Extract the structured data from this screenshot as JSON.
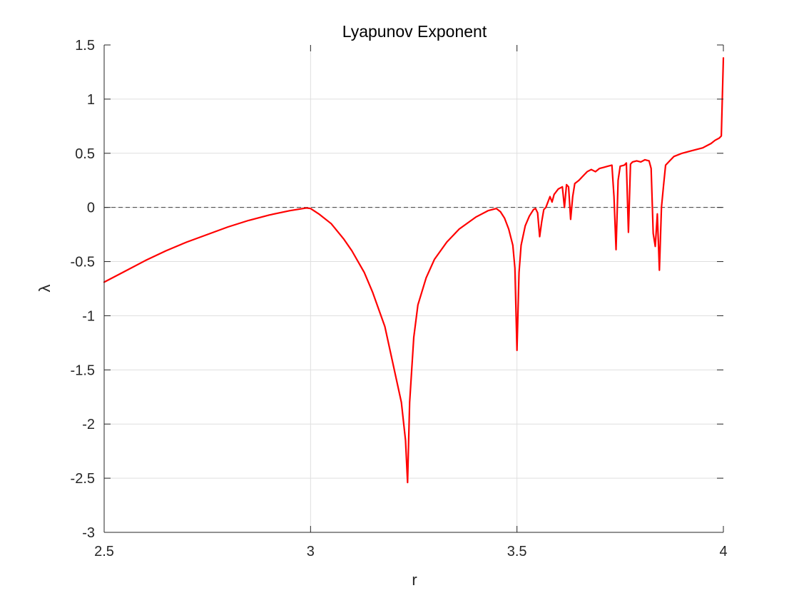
{
  "chart_data": {
    "type": "line",
    "title": "Lyapunov Exponent",
    "xlabel": "r",
    "ylabel": "λ",
    "xlim": [
      2.5,
      4
    ],
    "ylim": [
      -3,
      1.5
    ],
    "xticks": [
      2.5,
      3,
      3.5,
      4
    ],
    "xtick_labels": [
      "2.5",
      "3",
      "3.5",
      "4"
    ],
    "yticks": [
      -3,
      -2.5,
      -2,
      -1.5,
      -1,
      -0.5,
      0,
      0.5,
      1,
      1.5
    ],
    "ytick_labels": [
      "-3",
      "-2.5",
      "-2",
      "-1.5",
      "-1",
      "-0.5",
      "0",
      "0.5",
      "1",
      "1.5"
    ],
    "grid": true,
    "reference_line": {
      "y": 0,
      "style": "dashed",
      "color": "#404040"
    },
    "series": [
      {
        "color": "#ff0000",
        "x": [
          2.5,
          2.55,
          2.6,
          2.65,
          2.7,
          2.75,
          2.8,
          2.85,
          2.9,
          2.95,
          2.99,
          3.0,
          3.02,
          3.05,
          3.08,
          3.1,
          3.13,
          3.15,
          3.18,
          3.2,
          3.22,
          3.23,
          3.235,
          3.24,
          3.245,
          3.25,
          3.26,
          3.28,
          3.3,
          3.33,
          3.36,
          3.4,
          3.43,
          3.45,
          3.46,
          3.47,
          3.48,
          3.49,
          3.495,
          3.5,
          3.505,
          3.51,
          3.52,
          3.53,
          3.54,
          3.545,
          3.55,
          3.555,
          3.56,
          3.565,
          3.57,
          3.575,
          3.58,
          3.585,
          3.59,
          3.6,
          3.61,
          3.615,
          3.62,
          3.625,
          3.63,
          3.635,
          3.64,
          3.65,
          3.66,
          3.67,
          3.68,
          3.69,
          3.7,
          3.71,
          3.72,
          3.73,
          3.735,
          3.74,
          3.745,
          3.75,
          3.76,
          3.765,
          3.77,
          3.775,
          3.78,
          3.79,
          3.8,
          3.81,
          3.82,
          3.825,
          3.83,
          3.835,
          3.84,
          3.845,
          3.85,
          3.855,
          3.86,
          3.87,
          3.88,
          3.9,
          3.92,
          3.94,
          3.95,
          3.96,
          3.97,
          3.98,
          3.99,
          3.995,
          4.0
        ],
        "y": [
          -0.69,
          -0.59,
          -0.49,
          -0.4,
          -0.32,
          -0.25,
          -0.18,
          -0.12,
          -0.07,
          -0.03,
          -0.005,
          -0.01,
          -0.06,
          -0.15,
          -0.29,
          -0.4,
          -0.6,
          -0.78,
          -1.1,
          -1.45,
          -1.8,
          -2.15,
          -2.54,
          -1.8,
          -1.5,
          -1.2,
          -0.9,
          -0.65,
          -0.48,
          -0.32,
          -0.2,
          -0.09,
          -0.03,
          -0.01,
          -0.04,
          -0.1,
          -0.2,
          -0.35,
          -0.56,
          -1.32,
          -0.6,
          -0.35,
          -0.17,
          -0.08,
          -0.02,
          -0.01,
          -0.05,
          -0.27,
          -0.13,
          -0.02,
          0.0,
          0.05,
          0.1,
          0.05,
          0.12,
          0.17,
          0.19,
          0.0,
          0.21,
          0.19,
          -0.11,
          0.1,
          0.22,
          0.25,
          0.29,
          0.33,
          0.35,
          0.33,
          0.36,
          0.37,
          0.38,
          0.39,
          0.1,
          -0.39,
          0.25,
          0.38,
          0.39,
          0.41,
          -0.23,
          0.4,
          0.42,
          0.43,
          0.42,
          0.44,
          0.43,
          0.36,
          -0.24,
          -0.36,
          -0.06,
          -0.58,
          0.0,
          0.2,
          0.39,
          0.43,
          0.47,
          0.5,
          0.52,
          0.54,
          0.55,
          0.57,
          0.59,
          0.62,
          0.64,
          0.66,
          1.38
        ]
      }
    ]
  }
}
